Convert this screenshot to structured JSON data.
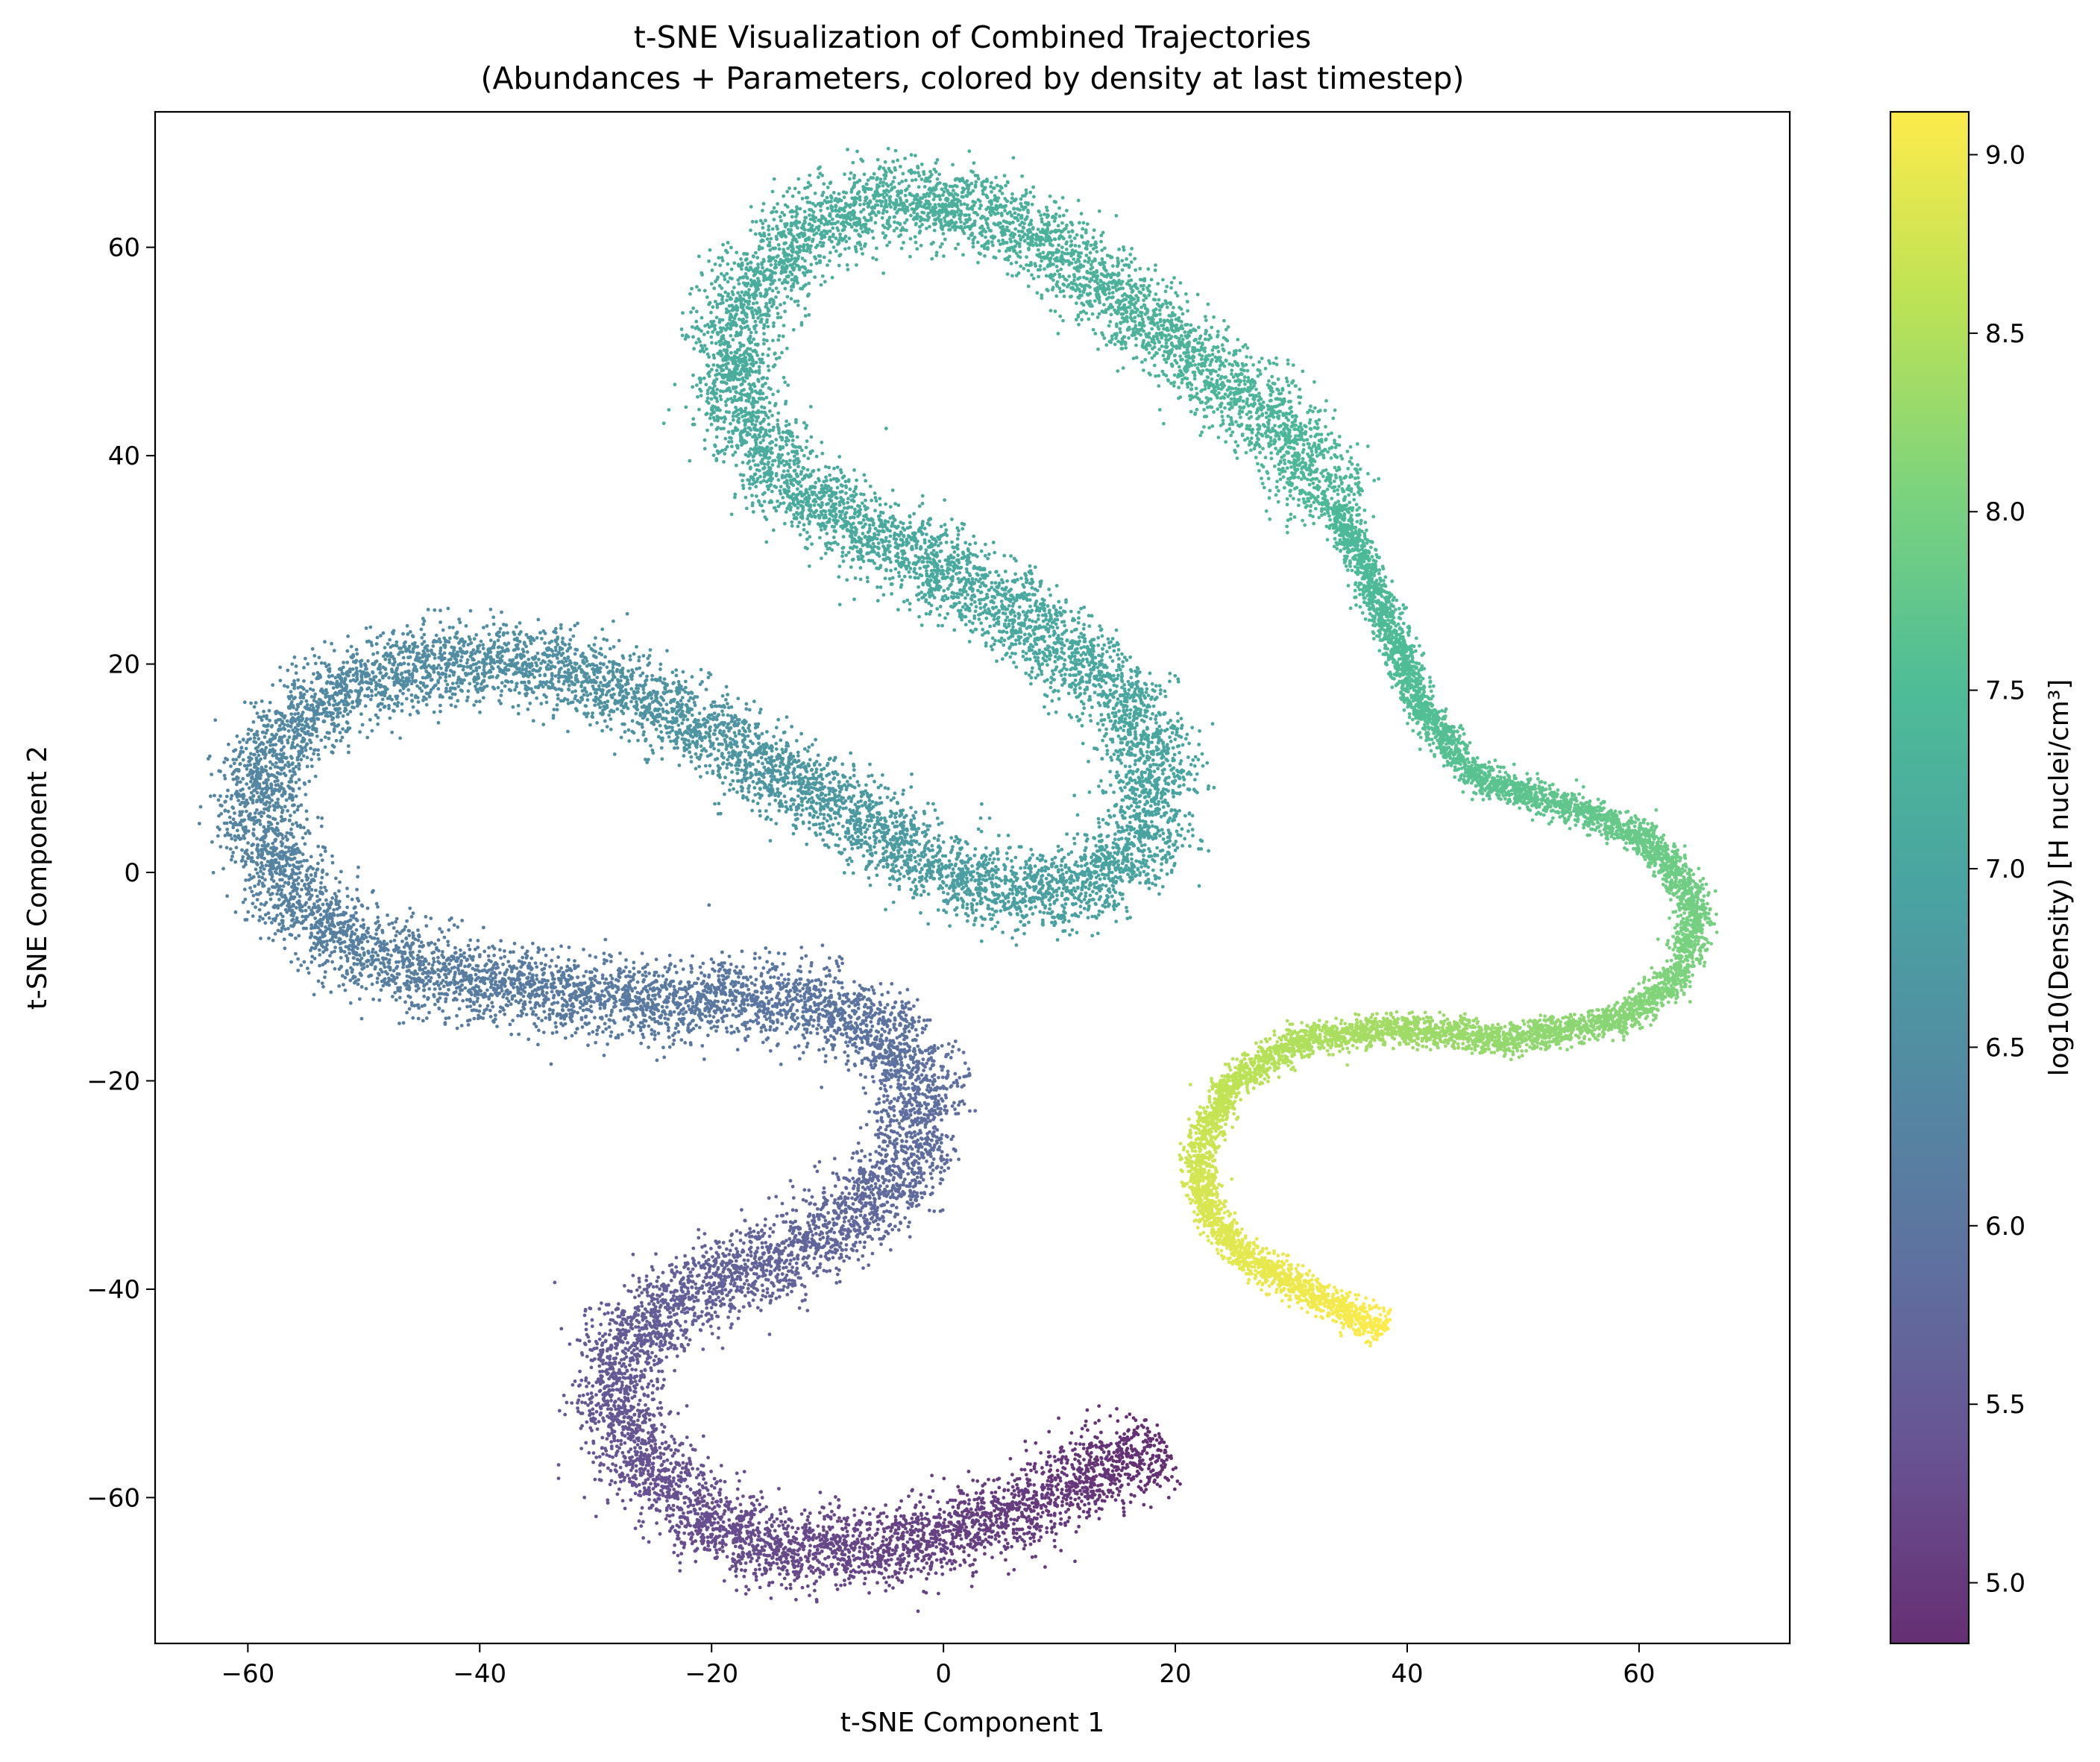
{
  "chart_data": {
    "type": "scatter",
    "title_line1": "t-SNE Visualization of Combined Trajectories",
    "title_line2": "(Abundances + Parameters, colored by density at last timestep)",
    "xlabel": "t-SNE Component 1",
    "ylabel": "t-SNE Component 2",
    "xlim": [
      -68,
      73
    ],
    "ylim": [
      -74,
      73
    ],
    "xticks": [
      -60,
      -40,
      -20,
      0,
      20,
      40,
      60
    ],
    "xtick_labels": [
      "−60",
      "−40",
      "−20",
      "0",
      "20",
      "40",
      "60"
    ],
    "yticks": [
      -60,
      -40,
      -20,
      0,
      20,
      40,
      60
    ],
    "ytick_labels": [
      "−60",
      "−40",
      "−20",
      "0",
      "20",
      "40",
      "60"
    ],
    "grid": false,
    "legend": "none",
    "colormap": "viridis",
    "colorbar": {
      "label": "log10(Density) [H nuclei/cm³]",
      "range": [
        4.83,
        9.12
      ],
      "ticks": [
        5.0,
        5.5,
        6.0,
        6.5,
        7.0,
        7.5,
        8.0,
        8.5,
        9.0
      ],
      "tick_labels": [
        "5.0",
        "5.5",
        "6.0",
        "6.5",
        "7.0",
        "7.5",
        "8.0",
        "8.5",
        "9.0"
      ]
    },
    "trajectory": [
      {
        "x": 19,
        "y": -55,
        "c": 4.83
      },
      {
        "x": 12,
        "y": -58,
        "c": 4.95
      },
      {
        "x": 5,
        "y": -62,
        "c": 5.05
      },
      {
        "x": -2,
        "y": -64,
        "c": 5.12
      },
      {
        "x": -10,
        "y": -65.5,
        "c": 5.2
      },
      {
        "x": -18,
        "y": -64,
        "c": 5.28
      },
      {
        "x": -24,
        "y": -59,
        "c": 5.35
      },
      {
        "x": -28,
        "y": -53,
        "c": 5.42
      },
      {
        "x": -29,
        "y": -48,
        "c": 5.48
      },
      {
        "x": -26,
        "y": -43,
        "c": 5.55
      },
      {
        "x": -20,
        "y": -39.5,
        "c": 5.62
      },
      {
        "x": -12,
        "y": -36,
        "c": 5.7
      },
      {
        "x": -5,
        "y": -31,
        "c": 5.78
      },
      {
        "x": -1.5,
        "y": -24,
        "c": 5.85
      },
      {
        "x": -3,
        "y": -17,
        "c": 5.92
      },
      {
        "x": -9,
        "y": -13,
        "c": 5.98
      },
      {
        "x": -17,
        "y": -12,
        "c": 6.03
      },
      {
        "x": -27,
        "y": -12.5,
        "c": 6.08
      },
      {
        "x": -37,
        "y": -11,
        "c": 6.12
      },
      {
        "x": -47,
        "y": -9,
        "c": 6.17
      },
      {
        "x": -54,
        "y": -5,
        "c": 6.22
      },
      {
        "x": -58,
        "y": 1,
        "c": 6.28
      },
      {
        "x": -59.5,
        "y": 8,
        "c": 6.33
      },
      {
        "x": -56,
        "y": 15,
        "c": 6.38
      },
      {
        "x": -49,
        "y": 19,
        "c": 6.43
      },
      {
        "x": -40,
        "y": 20.5,
        "c": 6.5
      },
      {
        "x": -32,
        "y": 19.5,
        "c": 6.55
      },
      {
        "x": -23,
        "y": 15,
        "c": 6.62
      },
      {
        "x": -15,
        "y": 10,
        "c": 6.68
      },
      {
        "x": -7,
        "y": 5,
        "c": 6.75
      },
      {
        "x": 0,
        "y": 0,
        "c": 6.82
      },
      {
        "x": 8,
        "y": -2.5,
        "c": 6.88
      },
      {
        "x": 15,
        "y": 0,
        "c": 6.93
      },
      {
        "x": 19,
        "y": 7,
        "c": 6.98
      },
      {
        "x": 17,
        "y": 15,
        "c": 7.02
      },
      {
        "x": 10,
        "y": 22,
        "c": 7.05
      },
      {
        "x": 0,
        "y": 29,
        "c": 7.08
      },
      {
        "x": -9,
        "y": 34,
        "c": 7.1
      },
      {
        "x": -16,
        "y": 40,
        "c": 7.12
      },
      {
        "x": -19,
        "y": 49,
        "c": 7.15
      },
      {
        "x": -15,
        "y": 59,
        "c": 7.18
      },
      {
        "x": -8,
        "y": 64,
        "c": 7.2
      },
      {
        "x": 0,
        "y": 64.5,
        "c": 7.22
      },
      {
        "x": 7,
        "y": 62,
        "c": 7.24
      },
      {
        "x": 14,
        "y": 56,
        "c": 7.27
      },
      {
        "x": 22,
        "y": 49,
        "c": 7.32
      },
      {
        "x": 29,
        "y": 43,
        "c": 7.37
      },
      {
        "x": 34,
        "y": 35,
        "c": 7.42
      },
      {
        "x": 38,
        "y": 25,
        "c": 7.48
      },
      {
        "x": 41,
        "y": 16,
        "c": 7.55
      },
      {
        "x": 46,
        "y": 9,
        "c": 7.65
      },
      {
        "x": 55,
        "y": 6,
        "c": 7.75
      },
      {
        "x": 61,
        "y": 3,
        "c": 7.85
      },
      {
        "x": 65,
        "y": -3,
        "c": 7.95
      },
      {
        "x": 64,
        "y": -9,
        "c": 8.05
      },
      {
        "x": 59,
        "y": -14,
        "c": 8.15
      },
      {
        "x": 49,
        "y": -16,
        "c": 8.25
      },
      {
        "x": 40,
        "y": -15,
        "c": 8.35
      },
      {
        "x": 31,
        "y": -16,
        "c": 8.48
      },
      {
        "x": 25,
        "y": -20,
        "c": 8.6
      },
      {
        "x": 22,
        "y": -26,
        "c": 8.72
      },
      {
        "x": 22.5,
        "y": -32,
        "c": 8.82
      },
      {
        "x": 26,
        "y": -37,
        "c": 8.92
      },
      {
        "x": 31,
        "y": -40,
        "c": 9.0
      },
      {
        "x": 38,
        "y": -44,
        "c": 9.12
      }
    ]
  }
}
